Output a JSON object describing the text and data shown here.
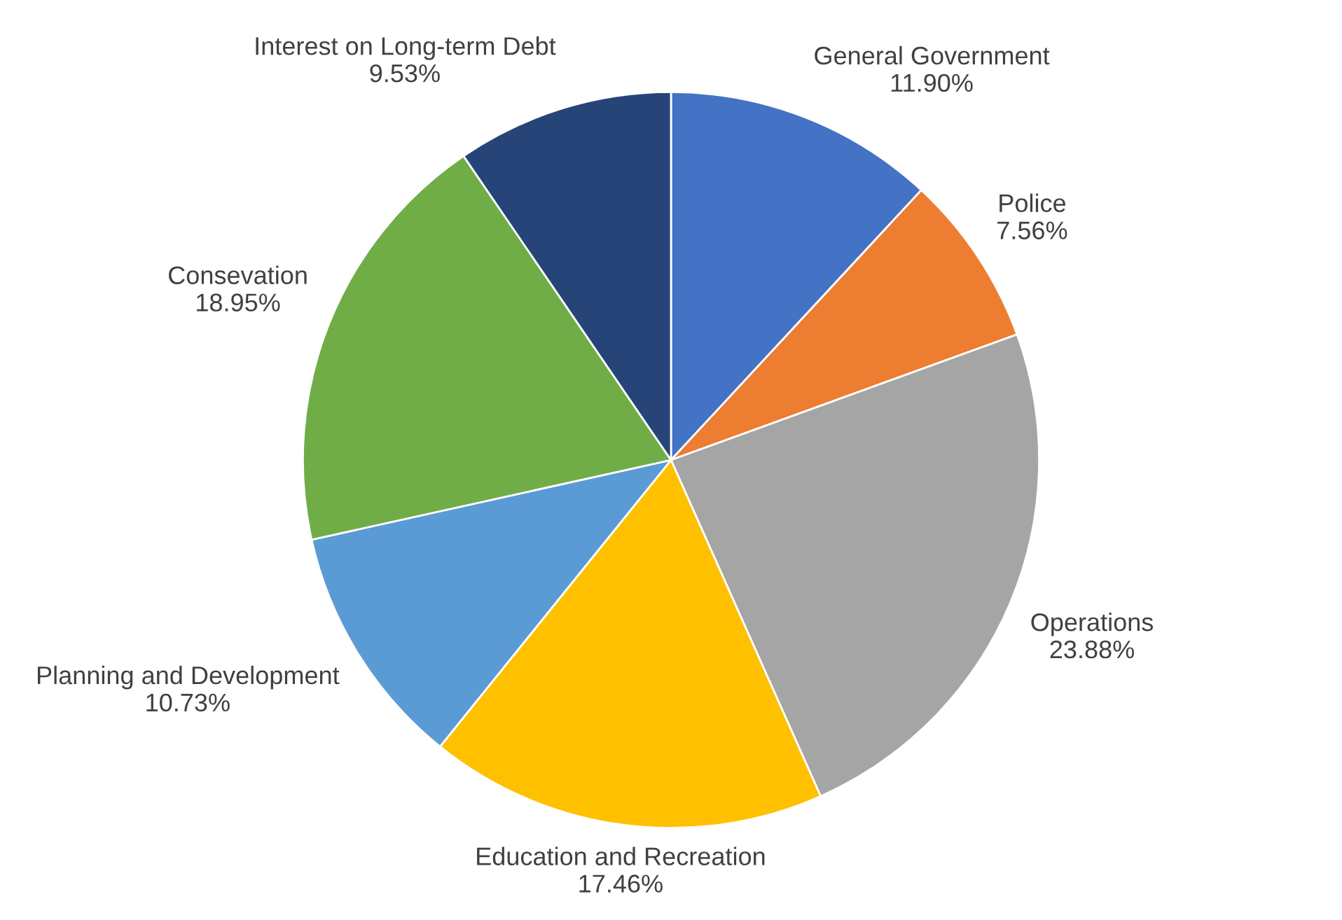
{
  "chart_data": {
    "type": "pie",
    "categories": [
      "General Government",
      "Police",
      "Operations",
      "Education and Recreation",
      "Planning and Development",
      "Consevation",
      "Interest on Long-term Debt"
    ],
    "values": [
      11.9,
      7.56,
      23.88,
      17.46,
      10.73,
      18.95,
      9.53
    ],
    "value_labels": [
      "11.90%",
      "7.56%",
      "23.88%",
      "17.46%",
      "10.73%",
      "18.95%",
      "9.53%"
    ],
    "colors": [
      "#4472c4",
      "#ed7d31",
      "#a5a5a5",
      "#ffc000",
      "#5b9bd5",
      "#70ad47",
      "#264478"
    ]
  }
}
